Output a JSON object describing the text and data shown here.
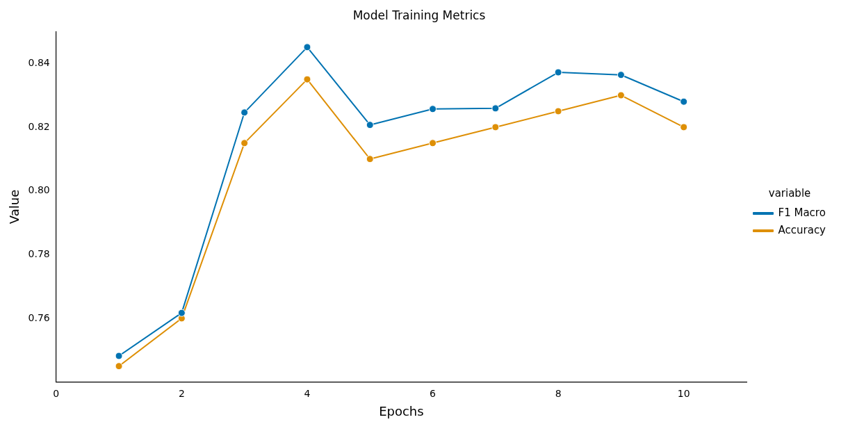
{
  "chart_data": {
    "type": "line",
    "title": "Model Training Metrics",
    "xlabel": "Epochs",
    "ylabel": "Value",
    "legend_title": "variable",
    "x": [
      1,
      2,
      3,
      4,
      5,
      6,
      7,
      8,
      9,
      10
    ],
    "series": [
      {
        "name": "F1 Macro",
        "color": "#0173b2",
        "values": [
          0.7482,
          0.7617,
          0.8246,
          0.8451,
          0.8207,
          0.8257,
          0.8259,
          0.8372,
          0.8364,
          0.828
        ]
      },
      {
        "name": "Accuracy",
        "color": "#de8f05",
        "values": [
          0.745,
          0.76,
          0.815,
          0.835,
          0.81,
          0.815,
          0.82,
          0.825,
          0.83,
          0.82
        ]
      }
    ],
    "xlim": [
      0,
      11
    ],
    "xticks": [
      0,
      2,
      4,
      6,
      8,
      10
    ],
    "ylim": [
      0.74,
      0.85
    ],
    "yticks": [
      {
        "value": 0.76,
        "label": "0.76"
      },
      {
        "value": 0.78,
        "label": "0.78"
      },
      {
        "value": 0.8,
        "label": "0.80"
      },
      {
        "value": 0.82,
        "label": "0.82"
      },
      {
        "value": 0.84,
        "label": "0.84"
      }
    ],
    "grid": false,
    "legend": "right",
    "marker": "circle",
    "line_style": "solid"
  }
}
